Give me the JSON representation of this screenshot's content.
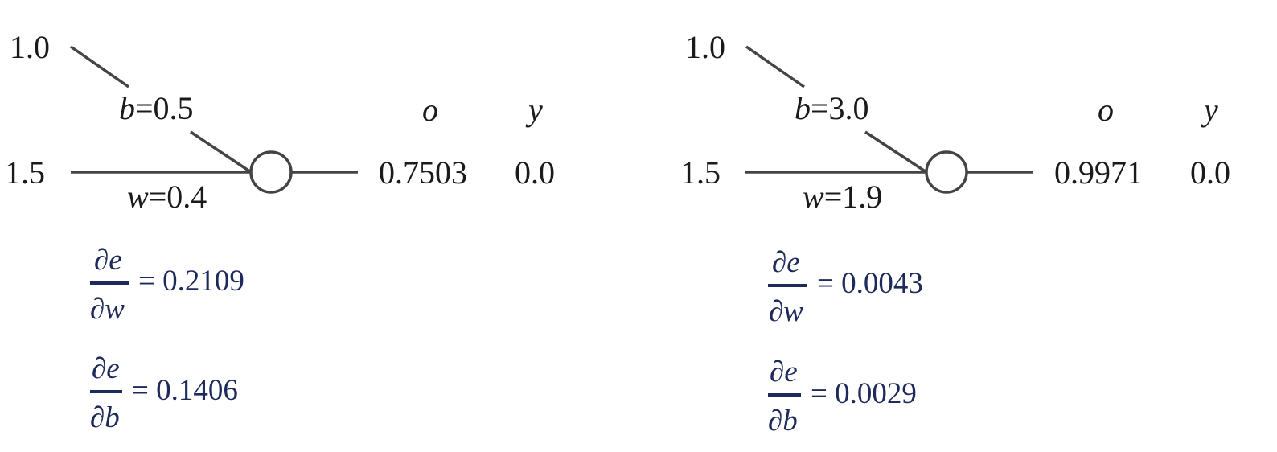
{
  "colors": {
    "line": "#444444",
    "text": "#1a1a1a",
    "math": "#1f2a5c"
  },
  "diagrams": [
    {
      "bias_input": "1.0",
      "x_input": "1.5",
      "b_symbol": "b",
      "b_value": "=0.5",
      "w_symbol": "w",
      "w_value": "=0.4",
      "o_header": "o",
      "y_header": "y",
      "o_value": "0.7503",
      "y_value": "0.0",
      "grad_w": {
        "numerator": "∂e",
        "denominator": "∂w",
        "value": "= 0.2109"
      },
      "grad_b": {
        "numerator": "∂e",
        "denominator": "∂b",
        "value": "= 0.1406"
      }
    },
    {
      "bias_input": "1.0",
      "x_input": "1.5",
      "b_symbol": "b",
      "b_value": "=3.0",
      "w_symbol": "w",
      "w_value": "=1.9",
      "o_header": "o",
      "y_header": "y",
      "o_value": "0.9971",
      "y_value": "0.0",
      "grad_w": {
        "numerator": "∂e",
        "denominator": "∂w",
        "value": "= 0.0043"
      },
      "grad_b": {
        "numerator": "∂e",
        "denominator": "∂b",
        "value": "= 0.0029"
      }
    }
  ]
}
